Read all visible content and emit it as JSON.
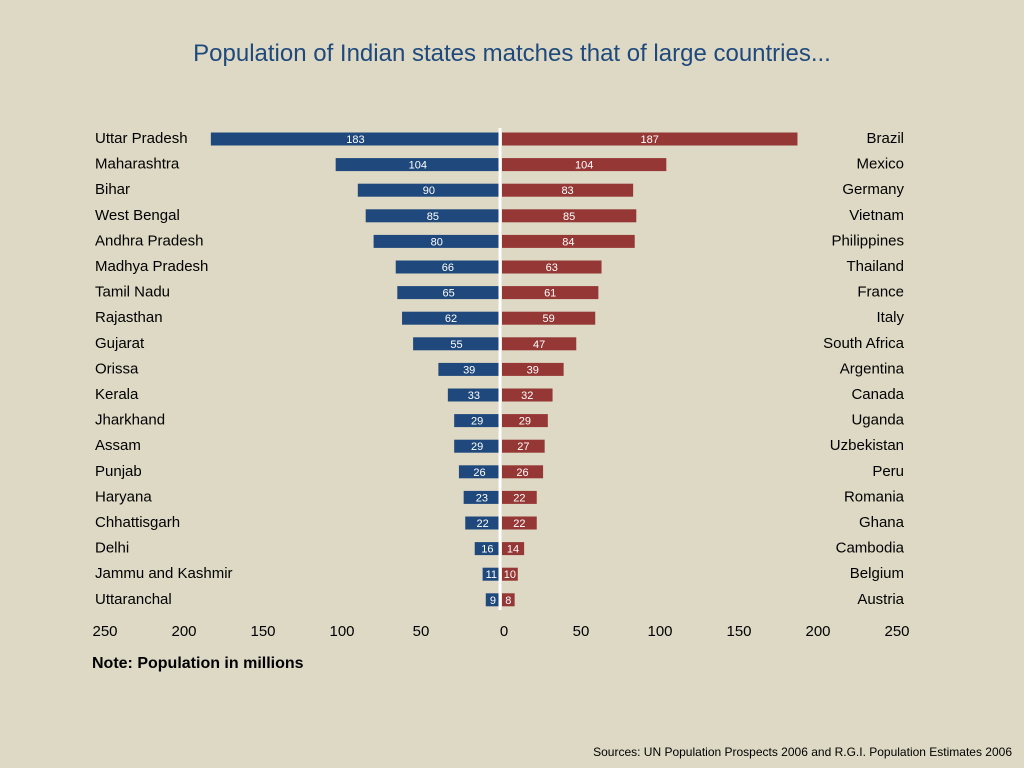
{
  "title": "Population of Indian states matches that of large countries...",
  "note": "Note: Population in millions",
  "source": "Sources: UN Population Prospects 2006 and R.G.I. Population Estimates 2006",
  "colors": {
    "left": "#1f497d",
    "right": "#953735",
    "divider": "#ffffff",
    "background": "#ddd9c4"
  },
  "chart_data": {
    "type": "bar",
    "orientation": "horizontal",
    "layout": "butterfly",
    "title": "Population of Indian states matches that of large countries...",
    "xlim": [
      -250,
      250
    ],
    "x_ticks": [
      "250",
      "200",
      "150",
      "100",
      "50",
      "0",
      "50",
      "100",
      "150",
      "200",
      "250"
    ],
    "grid": false,
    "series": [
      {
        "side": "left",
        "labels": [
          "Uttar Pradesh",
          "Maharashtra",
          "Bihar",
          "West Bengal",
          "Andhra Pradesh",
          "Madhya Pradesh",
          "Tamil Nadu",
          "Rajasthan",
          "Gujarat",
          "Orissa",
          "Kerala",
          "Jharkhand",
          "Assam",
          "Punjab",
          "Haryana",
          "Chhattisgarh",
          "Delhi",
          "Jammu and Kashmir",
          "Uttaranchal"
        ],
        "values": [
          183,
          104,
          90,
          85,
          80,
          66,
          65,
          62,
          55,
          39,
          33,
          29,
          29,
          26,
          23,
          22,
          16,
          11,
          9
        ]
      },
      {
        "side": "right",
        "labels": [
          "Brazil",
          "Mexico",
          "Germany",
          "Vietnam",
          "Philippines",
          "Thailand",
          "France",
          "Italy",
          "South Africa",
          "Argentina",
          "Canada",
          "Uganda",
          "Uzbekistan",
          "Peru",
          "Romania",
          "Ghana",
          "Cambodia",
          "Belgium",
          "Austria"
        ],
        "values": [
          187,
          104,
          83,
          85,
          84,
          63,
          61,
          59,
          47,
          39,
          32,
          29,
          27,
          26,
          22,
          22,
          14,
          10,
          8
        ]
      }
    ]
  }
}
